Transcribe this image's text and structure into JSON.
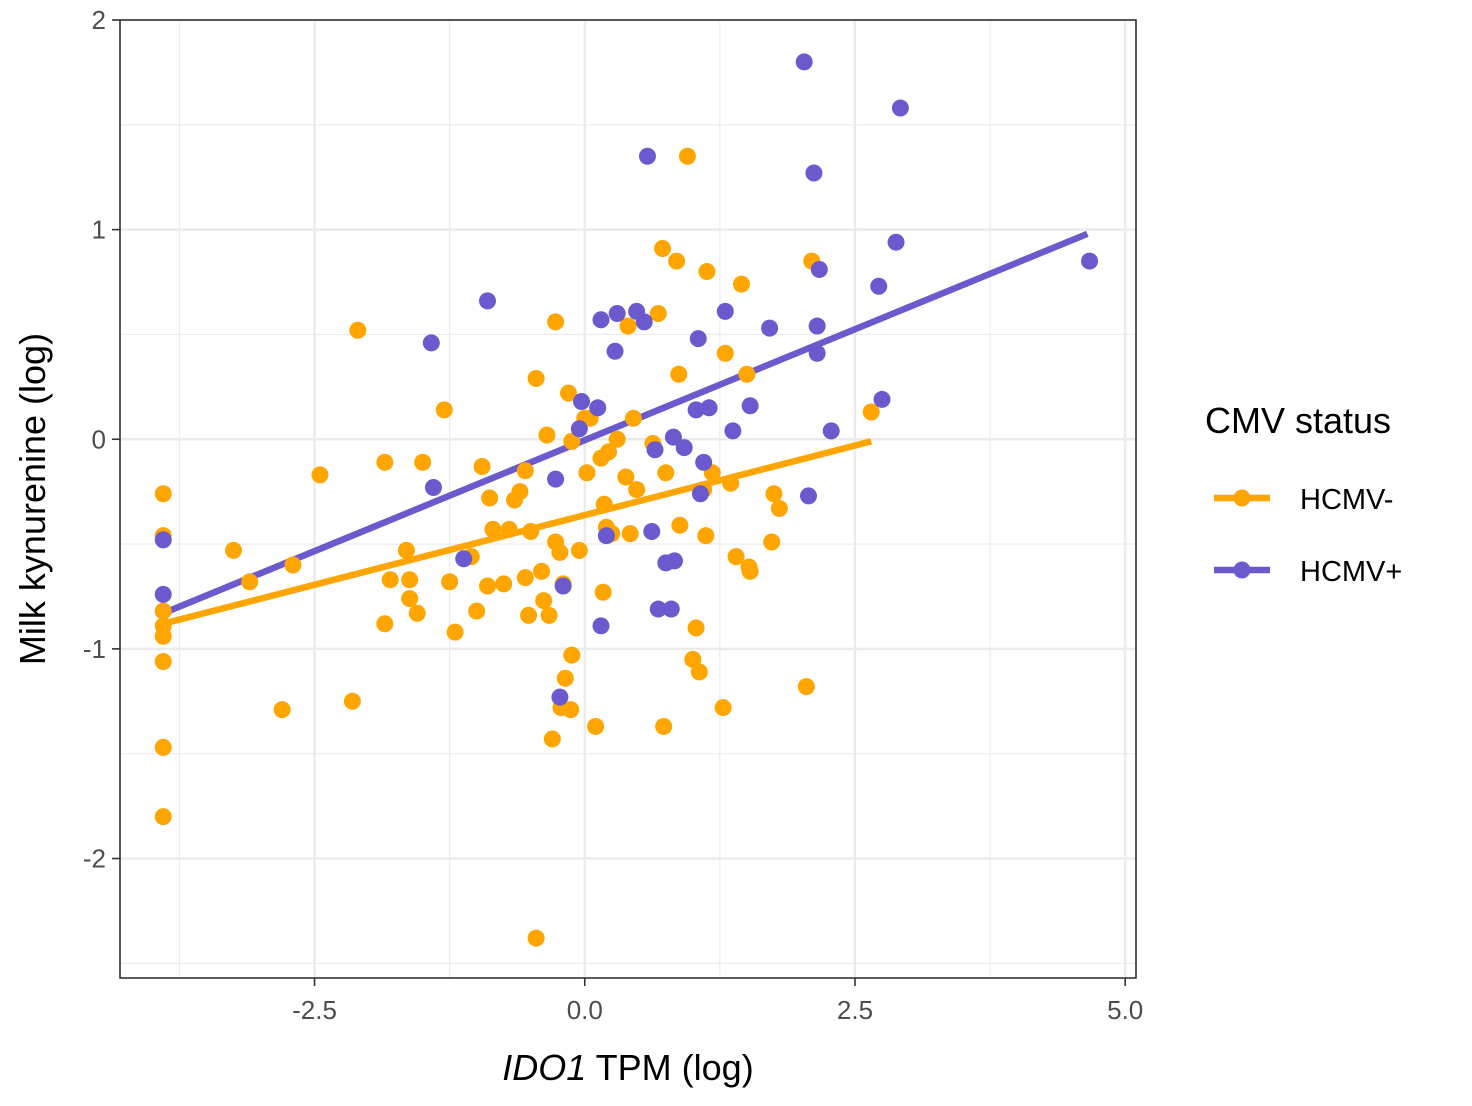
{
  "chart_data": {
    "type": "scatter",
    "xlabel_italic": "IDO1",
    "xlabel_rest": " TPM (log)",
    "ylabel": "Milk kynurenine (log)",
    "xlim": [
      -4.3,
      5.1
    ],
    "ylim": [
      -2.57,
      2.0
    ],
    "x_ticks": [
      -2.5,
      0.0,
      2.5,
      5.0
    ],
    "x_tick_labels": [
      "-2.5",
      "0.0",
      "2.5",
      "5.0"
    ],
    "y_ticks": [
      -2,
      -1,
      0,
      1,
      2
    ],
    "y_tick_labels": [
      "-2",
      "-1",
      "0",
      "1",
      "2"
    ],
    "grid": true,
    "legend": {
      "title": "CMV status",
      "placement": "right"
    },
    "series": [
      {
        "name": "HCMV-",
        "color": "#FFA500",
        "fit": {
          "x": [
            -3.9,
            2.65
          ],
          "y": [
            -0.88,
            -0.01
          ]
        },
        "points": [
          [
            -3.9,
            -0.26
          ],
          [
            -3.9,
            -0.46
          ],
          [
            -3.9,
            -0.82
          ],
          [
            -3.9,
            -0.89
          ],
          [
            -3.9,
            -0.94
          ],
          [
            -3.9,
            -1.06
          ],
          [
            -3.9,
            -1.47
          ],
          [
            -3.9,
            -1.8
          ],
          [
            -3.25,
            -0.53
          ],
          [
            -3.1,
            -0.68
          ],
          [
            -2.8,
            -1.29
          ],
          [
            -2.7,
            -0.6
          ],
          [
            -2.45,
            -0.17
          ],
          [
            -2.15,
            -1.25
          ],
          [
            -2.1,
            0.52
          ],
          [
            -1.85,
            -0.11
          ],
          [
            -1.85,
            -0.88
          ],
          [
            -1.8,
            -0.67
          ],
          [
            -1.65,
            -0.53
          ],
          [
            -1.62,
            -0.67
          ],
          [
            -1.62,
            -0.76
          ],
          [
            -1.55,
            -0.83
          ],
          [
            -1.5,
            -0.11
          ],
          [
            -1.3,
            0.14
          ],
          [
            -1.25,
            -0.68
          ],
          [
            -1.2,
            -0.92
          ],
          [
            -1.05,
            -0.56
          ],
          [
            -1.0,
            -0.82
          ],
          [
            -0.95,
            -0.13
          ],
          [
            -0.9,
            -0.7
          ],
          [
            -0.88,
            -0.28
          ],
          [
            -0.85,
            -0.43
          ],
          [
            -0.75,
            -0.69
          ],
          [
            -0.7,
            -0.43
          ],
          [
            -0.65,
            -0.29
          ],
          [
            -0.6,
            -0.25
          ],
          [
            -0.55,
            -0.66
          ],
          [
            -0.55,
            -0.15
          ],
          [
            -0.52,
            -0.84
          ],
          [
            -0.5,
            -0.44
          ],
          [
            -0.45,
            0.29
          ],
          [
            -0.45,
            -2.38
          ],
          [
            -0.4,
            -0.63
          ],
          [
            -0.38,
            -0.77
          ],
          [
            -0.35,
            0.02
          ],
          [
            -0.33,
            -0.84
          ],
          [
            -0.3,
            -1.43
          ],
          [
            -0.27,
            0.56
          ],
          [
            -0.27,
            -0.49
          ],
          [
            -0.23,
            -0.54
          ],
          [
            -0.22,
            -1.28
          ],
          [
            -0.2,
            -0.69
          ],
          [
            -0.18,
            -1.14
          ],
          [
            -0.15,
            0.22
          ],
          [
            -0.13,
            -1.29
          ],
          [
            -0.12,
            -0.01
          ],
          [
            -0.12,
            -1.03
          ],
          [
            -0.05,
            -0.53
          ],
          [
            0.0,
            0.1
          ],
          [
            0.02,
            -0.16
          ],
          [
            0.05,
            0.1
          ],
          [
            0.1,
            -1.37
          ],
          [
            0.15,
            -0.09
          ],
          [
            0.17,
            -0.73
          ],
          [
            0.18,
            -0.31
          ],
          [
            0.2,
            -0.42
          ],
          [
            0.22,
            -0.06
          ],
          [
            0.25,
            -0.45
          ],
          [
            0.3,
            0.0
          ],
          [
            0.38,
            -0.18
          ],
          [
            0.4,
            0.54
          ],
          [
            0.42,
            -0.45
          ],
          [
            0.45,
            0.1
          ],
          [
            0.48,
            -0.24
          ],
          [
            0.63,
            -0.02
          ],
          [
            0.68,
            0.6
          ],
          [
            0.72,
            0.91
          ],
          [
            0.73,
            -1.37
          ],
          [
            0.75,
            -0.16
          ],
          [
            0.85,
            0.85
          ],
          [
            0.87,
            0.31
          ],
          [
            0.88,
            -0.41
          ],
          [
            0.95,
            1.35
          ],
          [
            1.0,
            -1.05
          ],
          [
            1.03,
            -0.9
          ],
          [
            1.06,
            -1.11
          ],
          [
            1.1,
            -0.24
          ],
          [
            1.12,
            -0.46
          ],
          [
            1.13,
            0.8
          ],
          [
            1.18,
            -0.16
          ],
          [
            1.28,
            -1.28
          ],
          [
            1.3,
            0.41
          ],
          [
            1.35,
            -0.21
          ],
          [
            1.4,
            -0.56
          ],
          [
            1.45,
            0.74
          ],
          [
            1.5,
            0.31
          ],
          [
            1.52,
            -0.61
          ],
          [
            1.53,
            -0.63
          ],
          [
            1.73,
            -0.49
          ],
          [
            1.75,
            -0.26
          ],
          [
            1.8,
            -0.33
          ],
          [
            2.05,
            -1.18
          ],
          [
            2.1,
            0.85
          ],
          [
            2.65,
            0.13
          ]
        ]
      },
      {
        "name": "HCMV+",
        "color": "#6A5ACD",
        "fit": {
          "x": [
            -3.9,
            4.65
          ],
          "y": [
            -0.83,
            0.98
          ]
        },
        "points": [
          [
            -3.9,
            -0.48
          ],
          [
            -3.9,
            -0.74
          ],
          [
            -1.42,
            0.46
          ],
          [
            -1.4,
            -0.23
          ],
          [
            -1.12,
            -0.57
          ],
          [
            -0.9,
            0.66
          ],
          [
            -0.27,
            -0.19
          ],
          [
            -0.23,
            -1.23
          ],
          [
            -0.2,
            -0.7
          ],
          [
            -0.05,
            0.05
          ],
          [
            -0.03,
            0.18
          ],
          [
            0.12,
            0.15
          ],
          [
            0.15,
            0.57
          ],
          [
            0.15,
            -0.89
          ],
          [
            0.2,
            -0.46
          ],
          [
            0.28,
            0.42
          ],
          [
            0.3,
            0.6
          ],
          [
            0.48,
            0.61
          ],
          [
            0.55,
            0.56
          ],
          [
            0.58,
            1.35
          ],
          [
            0.62,
            -0.44
          ],
          [
            0.65,
            -0.05
          ],
          [
            0.68,
            -0.81
          ],
          [
            0.75,
            -0.59
          ],
          [
            0.8,
            -0.81
          ],
          [
            0.82,
            0.01
          ],
          [
            0.83,
            -0.58
          ],
          [
            0.92,
            -0.04
          ],
          [
            1.03,
            0.14
          ],
          [
            1.05,
            0.48
          ],
          [
            1.07,
            -0.26
          ],
          [
            1.1,
            -0.11
          ],
          [
            1.15,
            0.15
          ],
          [
            1.3,
            0.61
          ],
          [
            1.37,
            0.04
          ],
          [
            1.53,
            0.16
          ],
          [
            1.71,
            0.53
          ],
          [
            2.03,
            1.8
          ],
          [
            2.07,
            -0.27
          ],
          [
            2.12,
            1.27
          ],
          [
            2.15,
            0.54
          ],
          [
            2.15,
            0.41
          ],
          [
            2.17,
            0.81
          ],
          [
            2.28,
            0.04
          ],
          [
            2.72,
            0.73
          ],
          [
            2.75,
            0.19
          ],
          [
            2.88,
            0.94
          ],
          [
            2.92,
            1.58
          ],
          [
            4.67,
            0.85
          ]
        ]
      }
    ]
  }
}
